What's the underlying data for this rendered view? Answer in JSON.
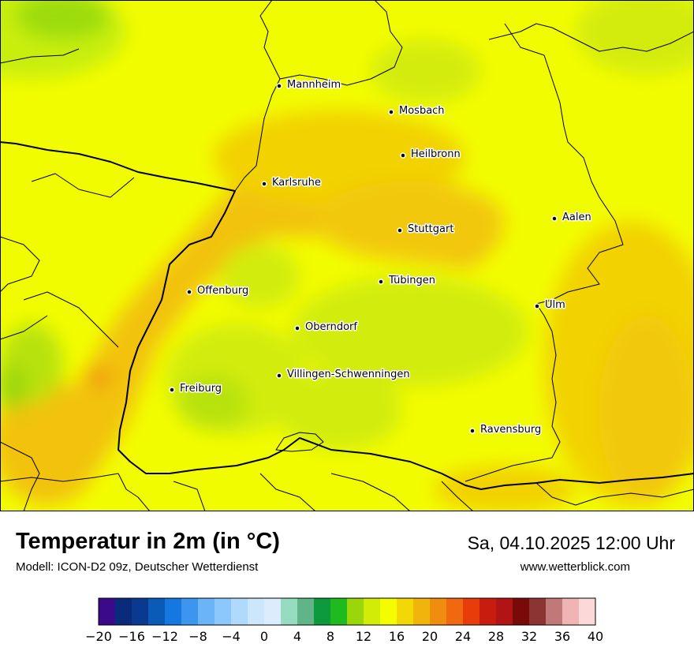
{
  "header": {
    "title": "Temperatur in 2m (in °C)",
    "subtitle": "Modell: ICON-D2 09z, Deutscher Wetterdienst",
    "datetime": "Sa, 04.10.2025 12:00 Uhr",
    "website": "www.wetterblick.com"
  },
  "cities": [
    {
      "name": "Mannheim"
    },
    {
      "name": "Mosbach"
    },
    {
      "name": "Heilbronn"
    },
    {
      "name": "Karlsruhe"
    },
    {
      "name": "Aalen"
    },
    {
      "name": "Stuttgart"
    },
    {
      "name": "Tübingen"
    },
    {
      "name": "Offenburg"
    },
    {
      "name": "Ulm"
    },
    {
      "name": "Oberndorf"
    },
    {
      "name": "Villingen-Schwenningen"
    },
    {
      "name": "Freiburg"
    },
    {
      "name": "Ravensburg"
    }
  ],
  "legend": {
    "ticks": [
      "−20",
      "−16",
      "−12",
      "−8",
      "−4",
      "0",
      "4",
      "8",
      "12",
      "16",
      "20",
      "24",
      "28",
      "32",
      "36",
      "40"
    ],
    "colors": [
      "#3a0a8a",
      "#0a2a7a",
      "#0a3a90",
      "#0a5ab8",
      "#1478e0",
      "#3c96f0",
      "#6cb4f8",
      "#8cc8fc",
      "#b0dafc",
      "#cce6fc",
      "#dcecfc",
      "#96dcc0",
      "#60b488",
      "#0c9a3c",
      "#1eba1e",
      "#9ad60a",
      "#d2ec08",
      "#f4fc00",
      "#f2d806",
      "#f0b40a",
      "#f08c0e",
      "#f06810",
      "#e83c0a",
      "#c81c10",
      "#b01414",
      "#780a0a",
      "#8c3434",
      "#c07878",
      "#f0b4b4",
      "#fcd8d8"
    ]
  }
}
